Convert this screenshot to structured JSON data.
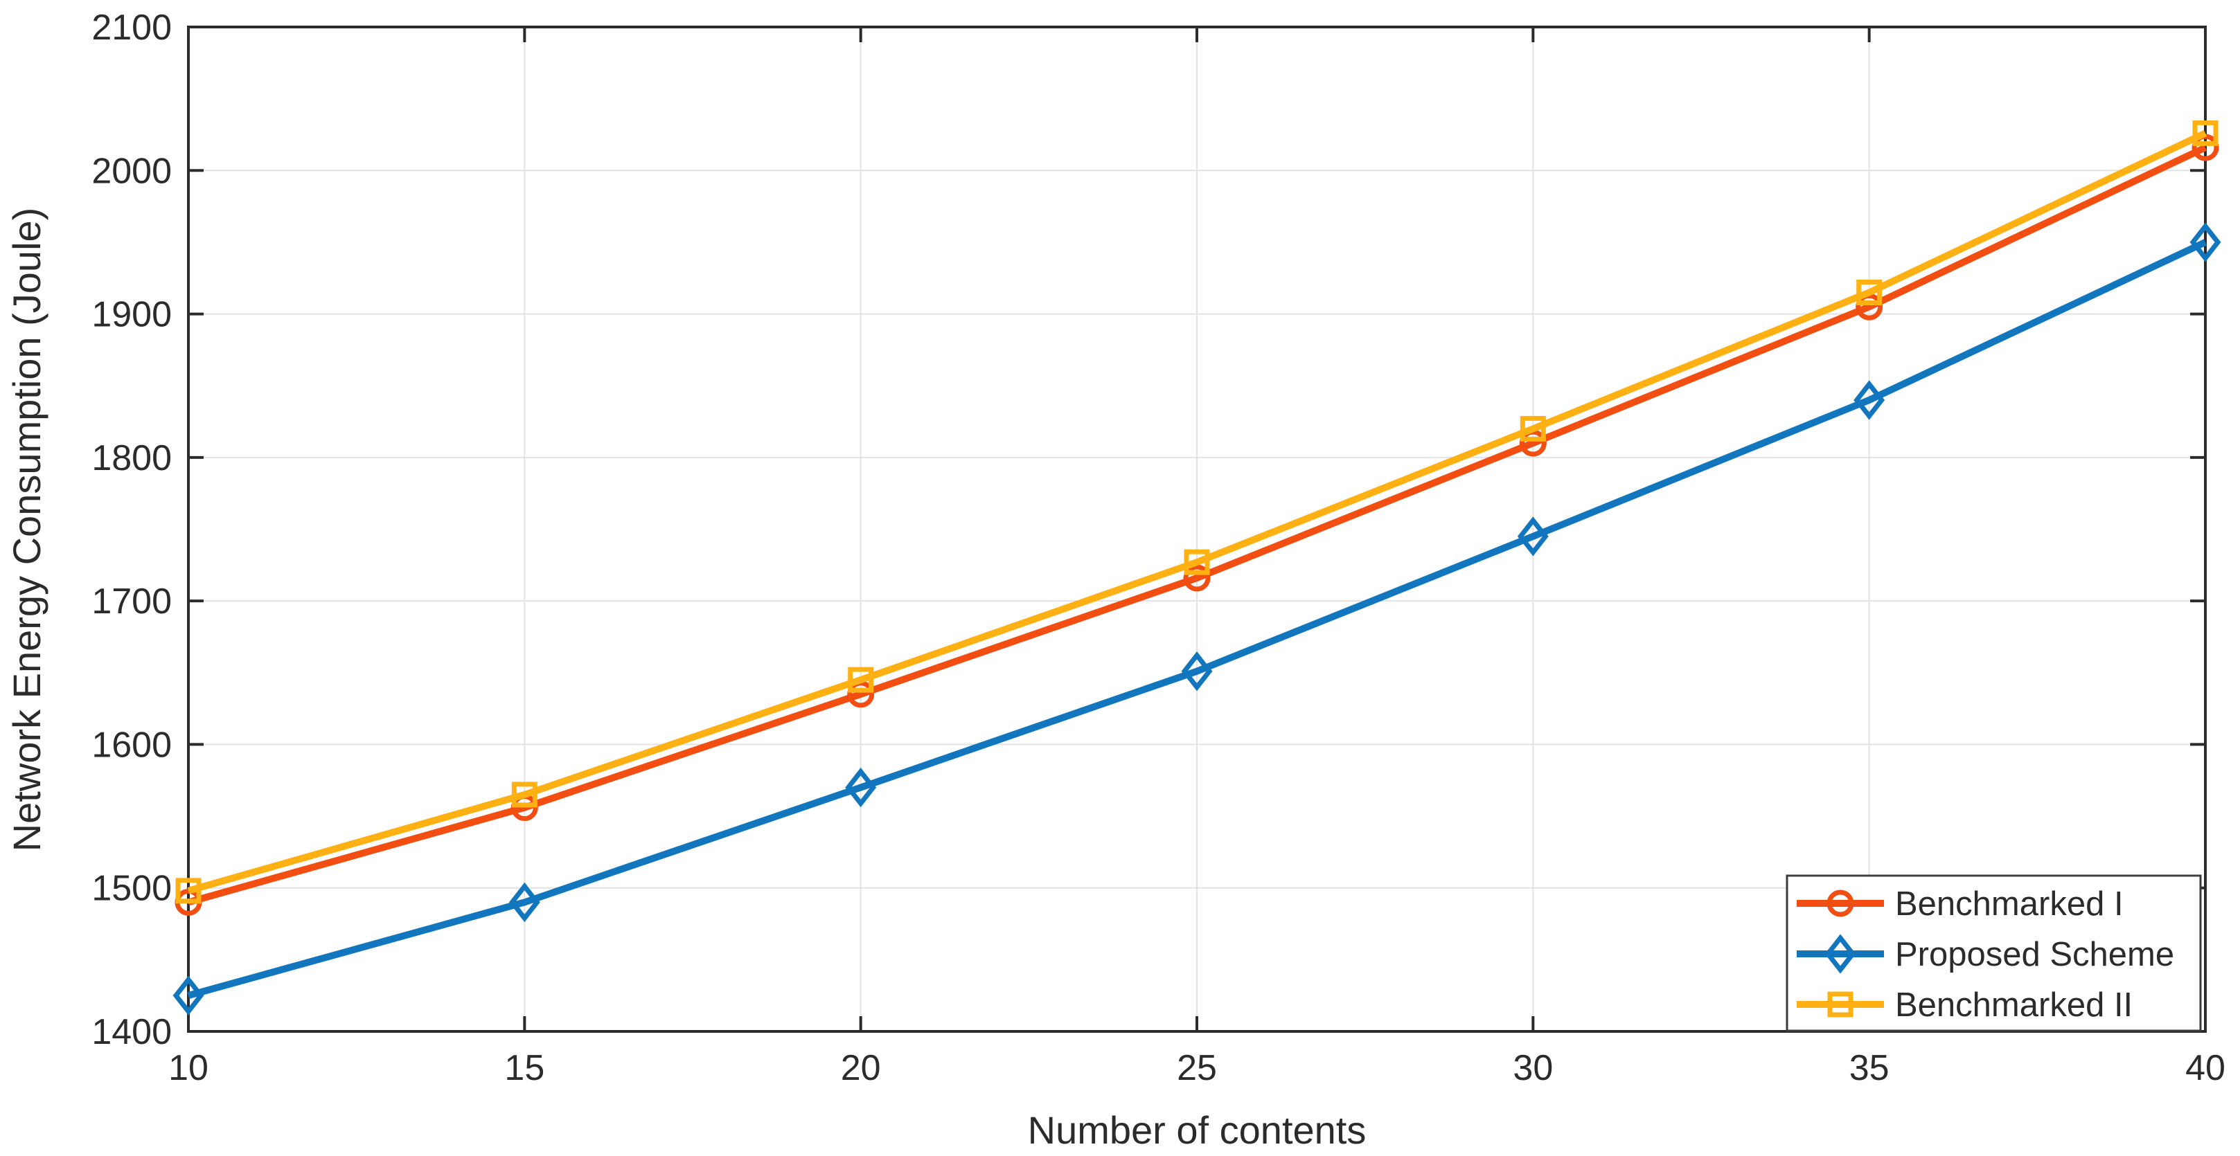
{
  "chart_data": {
    "type": "line",
    "x": [
      10,
      15,
      20,
      25,
      30,
      35,
      40
    ],
    "series": [
      {
        "name": "Benchmarked I",
        "marker": "circle",
        "color": "#F24E12",
        "values": [
          1490,
          1556,
          1635,
          1716,
          1810,
          1905,
          2016
        ]
      },
      {
        "name": "Proposed Scheme",
        "marker": "diamond",
        "color": "#1176BD",
        "values": [
          1425,
          1490,
          1570,
          1651,
          1745,
          1840,
          1950
        ]
      },
      {
        "name": "Benchmarked II",
        "marker": "square",
        "color": "#FFB114",
        "values": [
          1498,
          1565,
          1645,
          1727,
          1820,
          1915,
          2026
        ]
      }
    ],
    "title": "",
    "xlabel": "Number of contents",
    "ylabel": "Network Energy Consumption (Joule)",
    "xlim": [
      10,
      40
    ],
    "ylim": [
      1400,
      2100
    ],
    "xticks": [
      10,
      15,
      20,
      25,
      30,
      35,
      40
    ],
    "yticks": [
      1400,
      1500,
      1600,
      1700,
      1800,
      1900,
      2000,
      2100
    ],
    "grid": true,
    "legend_position": "bottom-right",
    "legend_labels": [
      "Benchmarked I",
      "Proposed Scheme",
      "Benchmarked II"
    ]
  },
  "colors": {
    "axis": "#2b2b2b",
    "grid": "#e2e2e2",
    "background": "#ffffff",
    "legend_border": "#3c3c3c",
    "series_orange": "#F24E12",
    "series_blue": "#1176BD",
    "series_yellow": "#FFB114"
  }
}
